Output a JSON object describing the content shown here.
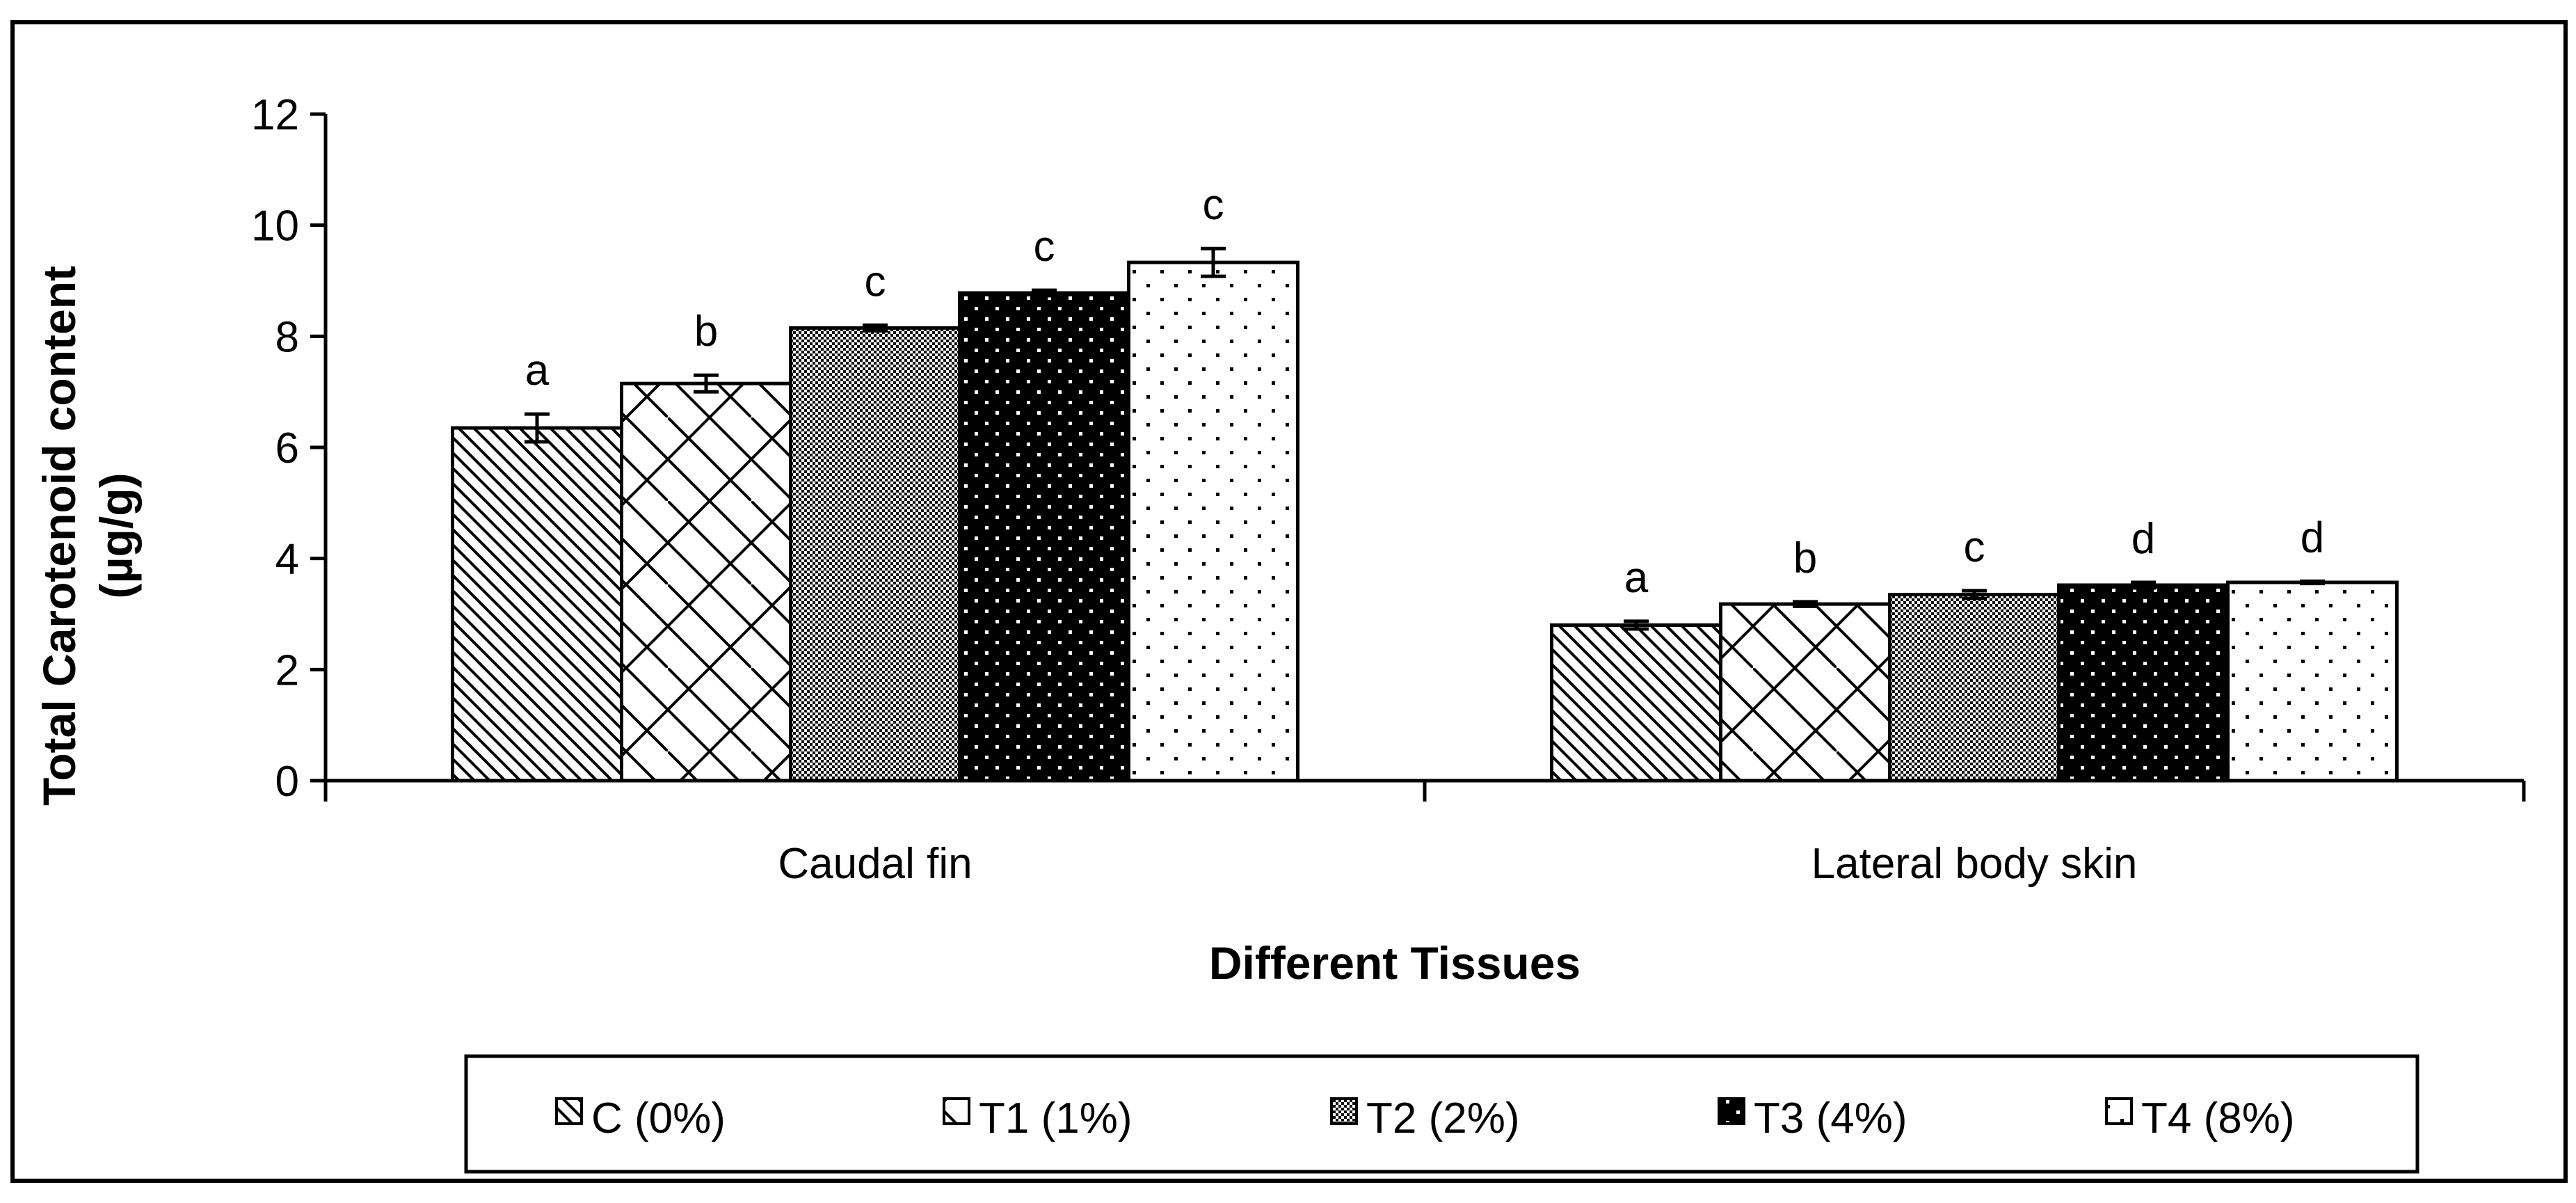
{
  "chart_data": {
    "type": "bar",
    "title": "",
    "xlabel": "Different Tissues",
    "ylabel_lines": [
      "Total Carotenoid content",
      "(µg/g)"
    ],
    "ylim": [
      0,
      12
    ],
    "yticks": [
      "0",
      "2",
      "4",
      "6",
      "8",
      "10",
      "12"
    ],
    "grid": false,
    "legend_position": "bottom",
    "categories": [
      "Caudal fin",
      "Lateral body skin"
    ],
    "series": [
      {
        "name": "C (0%)",
        "pattern": "diagonal",
        "values": [
          6.35,
          2.8
        ],
        "errors": [
          0.25,
          0.07
        ],
        "letters": [
          "a",
          "a"
        ]
      },
      {
        "name": "T1 (1%)",
        "pattern": "lattice",
        "values": [
          7.15,
          3.18
        ],
        "errors": [
          0.15,
          0.04
        ],
        "letters": [
          "b",
          "b"
        ]
      },
      {
        "name": "T2 (2%)",
        "pattern": "checker",
        "values": [
          8.15,
          3.35
        ],
        "errors": [
          0.05,
          0.07
        ],
        "letters": [
          "c",
          "c"
        ]
      },
      {
        "name": "T3 (4%)",
        "pattern": "blackdot",
        "values": [
          8.78,
          3.52
        ],
        "errors": [
          0.05,
          0.05
        ],
        "letters": [
          "c",
          "d"
        ]
      },
      {
        "name": "T4 (8%)",
        "pattern": "whitedot",
        "values": [
          9.33,
          3.57
        ],
        "errors": [
          0.25,
          0.02
        ],
        "letters": [
          "c",
          "d"
        ]
      }
    ]
  }
}
